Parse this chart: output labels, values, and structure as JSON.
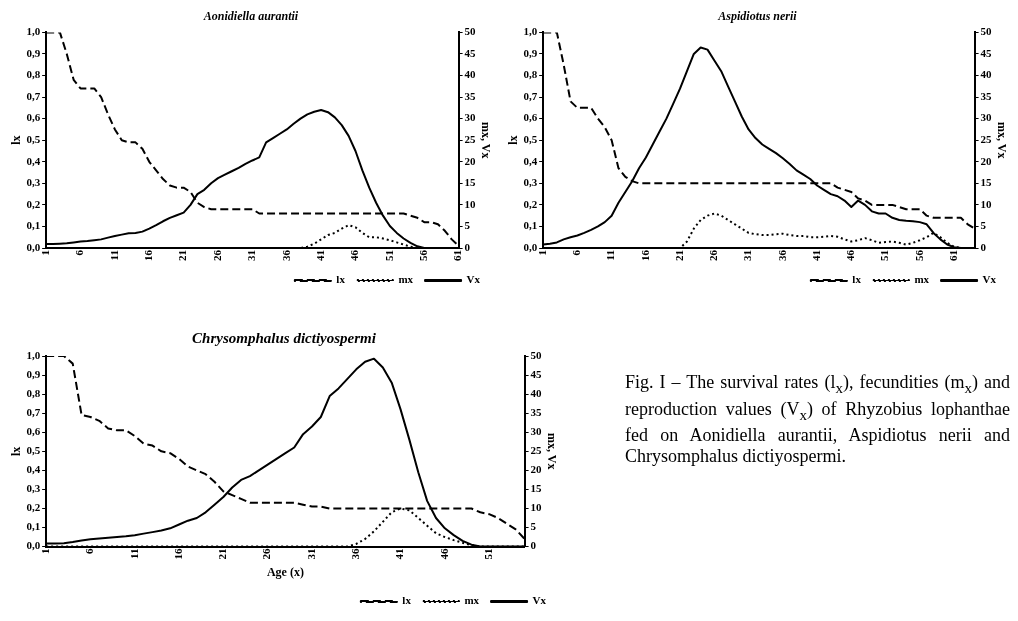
{
  "chart_data": [
    {
      "type": "line",
      "title": "Aonidiella aurantii",
      "ylabel": "lx",
      "y2label": "mx, Vx",
      "categories": [
        "1",
        null,
        null,
        null,
        null,
        "6",
        null,
        null,
        null,
        null,
        "11",
        null,
        null,
        null,
        null,
        "16",
        null,
        null,
        null,
        null,
        "21",
        null,
        null,
        null,
        null,
        "26",
        null,
        null,
        null,
        null,
        "31",
        null,
        null,
        null,
        null,
        "36",
        null,
        null,
        null,
        null,
        "41",
        null,
        null,
        null,
        null,
        "46",
        null,
        null,
        null,
        null,
        "51",
        null,
        null,
        null,
        null,
        "56",
        null,
        null,
        null,
        null,
        "61"
      ],
      "series": [
        {
          "name": "lx",
          "color": "#000000",
          "line_style": "dashed",
          "values": [
            1,
            1,
            1,
            0.9,
            0.78,
            0.74,
            0.74,
            0.74,
            0.7,
            0.62,
            0.55,
            0.5,
            0.49,
            0.49,
            0.46,
            0.4,
            0.36,
            0.32,
            0.29,
            0.28,
            0.28,
            0.26,
            0.21,
            0.19,
            0.18,
            0.18,
            0.18,
            0.18,
            0.18,
            0.18,
            0.18,
            0.16,
            0.16,
            0.16,
            0.16,
            0.16,
            0.16,
            0.16,
            0.16,
            0.16,
            0.16,
            0.16,
            0.16,
            0.16,
            0.16,
            0.16,
            0.16,
            0.16,
            0.16,
            0.16,
            0.16,
            0.16,
            0.16,
            0.15,
            0.14,
            0.12,
            0.12,
            0.11,
            0.08,
            0.04,
            0.01
          ]
        },
        {
          "name": "mx",
          "color": "#000000",
          "line_style": "dotted",
          "axis": "y2",
          "values": [
            0,
            0,
            0,
            0,
            0,
            0,
            0,
            0,
            0,
            0,
            0,
            0,
            0,
            0,
            0,
            0,
            0,
            0,
            0,
            0,
            0,
            0,
            0,
            0,
            0,
            0,
            0,
            0,
            0,
            0,
            0,
            0,
            0,
            0,
            0,
            0,
            0,
            0,
            0.3,
            1,
            2,
            3,
            3.5,
            4.5,
            5.3,
            4.8,
            3.5,
            2.5,
            2.5,
            2.2,
            1.8,
            1.3,
            0.8,
            0.3,
            0,
            0,
            0,
            0,
            0,
            0,
            0
          ]
        },
        {
          "name": "Vx",
          "color": "#000000",
          "line_style": "solid",
          "axis": "y2",
          "values": [
            0.9,
            0.9,
            1,
            1.1,
            1.3,
            1.5,
            1.6,
            1.8,
            2,
            2.4,
            2.8,
            3.1,
            3.4,
            3.5,
            3.8,
            4.5,
            5.3,
            6.2,
            7,
            7.6,
            8.2,
            10,
            12.5,
            13.5,
            15,
            16.2,
            17,
            17.8,
            18.6,
            19.5,
            20.3,
            21,
            24.5,
            25.5,
            26.5,
            27.5,
            28.8,
            30,
            31,
            31.6,
            32,
            31.5,
            30.3,
            28.5,
            26,
            22.5,
            18,
            14,
            10.5,
            7.5,
            5.1,
            3.5,
            2.2,
            1.2,
            0.4,
            0,
            0,
            0,
            0,
            0,
            0
          ]
        }
      ],
      "ylim": [
        0,
        1
      ],
      "yticks": [
        {
          "value": 0,
          "label": "0,0"
        },
        {
          "value": 0.1,
          "label": "0,1"
        },
        {
          "value": 0.2,
          "label": "0,2"
        },
        {
          "value": 0.3,
          "label": "0,3"
        },
        {
          "value": 0.4,
          "label": "0,4"
        },
        {
          "value": 0.5,
          "label": "0,5"
        },
        {
          "value": 0.6,
          "label": "0,6"
        },
        {
          "value": 0.7,
          "label": "0,7"
        },
        {
          "value": 0.8,
          "label": "0,8"
        },
        {
          "value": 0.9,
          "label": "0,9"
        },
        {
          "value": 1,
          "label": "1,0"
        }
      ],
      "y2lim": [
        0,
        50
      ],
      "y2ticks": [
        0,
        5,
        10,
        15,
        20,
        25,
        30,
        35,
        40,
        45,
        50
      ],
      "grid": false,
      "legend": "bottom right",
      "marker": "none"
    },
    {
      "type": "line",
      "title": "Aspidiotus nerii",
      "ylabel": "lx",
      "y2label": "mx, Vx",
      "categories": [
        "1",
        null,
        null,
        null,
        null,
        "6",
        null,
        null,
        null,
        null,
        "11",
        null,
        null,
        null,
        null,
        "16",
        null,
        null,
        null,
        null,
        "21",
        null,
        null,
        null,
        null,
        "26",
        null,
        null,
        null,
        null,
        "31",
        null,
        null,
        null,
        null,
        "36",
        null,
        null,
        null,
        null,
        "41",
        null,
        null,
        null,
        null,
        "46",
        null,
        null,
        null,
        null,
        "51",
        null,
        null,
        null,
        null,
        "56",
        null,
        null,
        null,
        null,
        "61",
        null,
        null,
        null
      ],
      "series": [
        {
          "name": "lx",
          "color": "#000000",
          "line_style": "dashed",
          "values": [
            1,
            1,
            1,
            0.85,
            0.68,
            0.65,
            0.65,
            0.65,
            0.6,
            0.56,
            0.5,
            0.37,
            0.33,
            0.31,
            0.3,
            0.3,
            0.3,
            0.3,
            0.3,
            0.3,
            0.3,
            0.3,
            0.3,
            0.3,
            0.3,
            0.3,
            0.3,
            0.3,
            0.3,
            0.3,
            0.3,
            0.3,
            0.3,
            0.3,
            0.3,
            0.3,
            0.3,
            0.3,
            0.3,
            0.3,
            0.3,
            0.3,
            0.3,
            0.28,
            0.27,
            0.26,
            0.23,
            0.22,
            0.2,
            0.2,
            0.2,
            0.2,
            0.19,
            0.18,
            0.18,
            0.18,
            0.15,
            0.14,
            0.14,
            0.14,
            0.14,
            0.14,
            0.11,
            0.09
          ]
        },
        {
          "name": "mx",
          "color": "#000000",
          "line_style": "dotted",
          "axis": "y2",
          "values": [
            0,
            0,
            0,
            0,
            0,
            0,
            0,
            0,
            0,
            0,
            0,
            0,
            0,
            0,
            0,
            0,
            0,
            0,
            0,
            0,
            0,
            1.5,
            4.5,
            6.5,
            7.5,
            8,
            7.5,
            6.5,
            5.5,
            4.5,
            3.5,
            3.2,
            3,
            3,
            3.2,
            3.3,
            3,
            2.8,
            2.8,
            2.5,
            2.5,
            2.6,
            2.8,
            2.6,
            2,
            1.5,
            1.8,
            2.3,
            1.8,
            1.2,
            1.4,
            1.5,
            1.2,
            0.8,
            1.2,
            1.8,
            2.5,
            3.5,
            2.5,
            1.2,
            0.3,
            0,
            0,
            0
          ]
        },
        {
          "name": "Vx",
          "color": "#000000",
          "line_style": "solid",
          "axis": "y2",
          "values": [
            0.8,
            1,
            1.3,
            2,
            2.5,
            2.9,
            3.5,
            4.2,
            5,
            6,
            7.5,
            10.5,
            13,
            15.5,
            18.5,
            21,
            24,
            27,
            30,
            33.5,
            37,
            41,
            45,
            46.5,
            46,
            43.5,
            41,
            37.5,
            34,
            30.5,
            27.5,
            25.5,
            24,
            23,
            22,
            20.8,
            19.5,
            18,
            17,
            16,
            14.5,
            13.5,
            12.5,
            12,
            11,
            9.5,
            11,
            10,
            8.5,
            8,
            8,
            7,
            6.5,
            6.3,
            6.2,
            6,
            5.5,
            3.5,
            2,
            0.8,
            0.2,
            0,
            0,
            0
          ]
        }
      ],
      "ylim": [
        0,
        1
      ],
      "yticks": [
        {
          "value": 0,
          "label": "0,0"
        },
        {
          "value": 0.1,
          "label": "0,1"
        },
        {
          "value": 0.2,
          "label": "0,2"
        },
        {
          "value": 0.3,
          "label": "0,3"
        },
        {
          "value": 0.4,
          "label": "0,4"
        },
        {
          "value": 0.5,
          "label": "0,5"
        },
        {
          "value": 0.6,
          "label": "0,6"
        },
        {
          "value": 0.7,
          "label": "0,7"
        },
        {
          "value": 0.8,
          "label": "0,8"
        },
        {
          "value": 0.9,
          "label": "0,9"
        },
        {
          "value": 1,
          "label": "1,0"
        }
      ],
      "y2lim": [
        0,
        50
      ],
      "y2ticks": [
        0,
        5,
        10,
        15,
        20,
        25,
        30,
        35,
        40,
        45,
        50
      ],
      "grid": false,
      "legend": "bottom right",
      "marker": "none"
    },
    {
      "type": "line",
      "title": "Chrysomphalus dictiyospermi",
      "xlabel": "Age (x)",
      "ylabel": "lx",
      "y2label": "mx, Vx",
      "categories": [
        "1",
        null,
        null,
        null,
        null,
        "6",
        null,
        null,
        null,
        null,
        "11",
        null,
        null,
        null,
        null,
        "16",
        null,
        null,
        null,
        null,
        "21",
        null,
        null,
        null,
        null,
        "26",
        null,
        null,
        null,
        null,
        "31",
        null,
        null,
        null,
        null,
        "36",
        null,
        null,
        null,
        null,
        "41",
        null,
        null,
        null,
        null,
        "46",
        null,
        null,
        null,
        null,
        "51",
        null,
        null,
        null,
        null
      ],
      "series": [
        {
          "name": "lx",
          "color": "#000000",
          "line_style": "dashed",
          "values": [
            1,
            1,
            1,
            0.96,
            0.69,
            0.68,
            0.66,
            0.62,
            0.61,
            0.61,
            0.58,
            0.54,
            0.53,
            0.5,
            0.49,
            0.46,
            0.42,
            0.4,
            0.38,
            0.34,
            0.29,
            0.27,
            0.25,
            0.23,
            0.23,
            0.23,
            0.23,
            0.23,
            0.23,
            0.22,
            0.21,
            0.21,
            0.2,
            0.2,
            0.2,
            0.2,
            0.2,
            0.2,
            0.2,
            0.2,
            0.2,
            0.2,
            0.2,
            0.2,
            0.2,
            0.2,
            0.2,
            0.2,
            0.2,
            0.18,
            0.17,
            0.15,
            0.12,
            0.09,
            0.04
          ]
        },
        {
          "name": "mx",
          "color": "#000000",
          "line_style": "dotted",
          "axis": "y2",
          "values": [
            0,
            0,
            0,
            0,
            0,
            0,
            0,
            0,
            0,
            0,
            0,
            0,
            0,
            0,
            0,
            0,
            0,
            0,
            0,
            0,
            0,
            0,
            0,
            0,
            0,
            0,
            0,
            0,
            0,
            0,
            0,
            0,
            0,
            0,
            0,
            0.7,
            2,
            4,
            6.5,
            9,
            10,
            9.5,
            7.5,
            5.5,
            3.5,
            2.5,
            1.7,
            1,
            0.4,
            0,
            0,
            0,
            0,
            0,
            0
          ]
        },
        {
          "name": "Vx",
          "color": "#000000",
          "line_style": "solid",
          "axis": "y2",
          "values": [
            0.8,
            0.8,
            0.9,
            1.2,
            1.6,
            1.9,
            2.1,
            2.3,
            2.5,
            2.7,
            3,
            3.4,
            3.8,
            4.2,
            4.8,
            5.8,
            6.8,
            7.5,
            9,
            11,
            13,
            15.5,
            17.5,
            18.5,
            20,
            21.5,
            23,
            24.5,
            26,
            29.5,
            31.5,
            34,
            39.5,
            41.5,
            44,
            46.5,
            48.5,
            49.3,
            47,
            43,
            36,
            28,
            19.5,
            12,
            7.5,
            4.8,
            3,
            1.5,
            0.5,
            0,
            0,
            0,
            0,
            0,
            0
          ]
        }
      ],
      "ylim": [
        0,
        1
      ],
      "yticks": [
        {
          "value": 0,
          "label": "0,0"
        },
        {
          "value": 0.1,
          "label": "0,1"
        },
        {
          "value": 0.2,
          "label": "0,2"
        },
        {
          "value": 0.3,
          "label": "0,3"
        },
        {
          "value": 0.4,
          "label": "0,4"
        },
        {
          "value": 0.5,
          "label": "0,5"
        },
        {
          "value": 0.6,
          "label": "0,6"
        },
        {
          "value": 0.7,
          "label": "0,7"
        },
        {
          "value": 0.8,
          "label": "0,8"
        },
        {
          "value": 0.9,
          "label": "0,9"
        },
        {
          "value": 1,
          "label": "1,0"
        }
      ],
      "y2lim": [
        0,
        50
      ],
      "y2ticks": [
        0,
        5,
        10,
        15,
        20,
        25,
        30,
        35,
        40,
        45,
        50
      ],
      "grid": false,
      "legend": "bottom right",
      "marker": "none",
      "annotations": [
        "Fig. I – The survival rates (l$_{x}$), fecundities (m$_{x}$) and reproduction values (V$_{x}$) of Rhyzobius lophanthae fed on Aonidiella aurantii, Aspidiotus nerii and Chrysomphalus dictiyospermi."
      ]
    }
  ]
}
